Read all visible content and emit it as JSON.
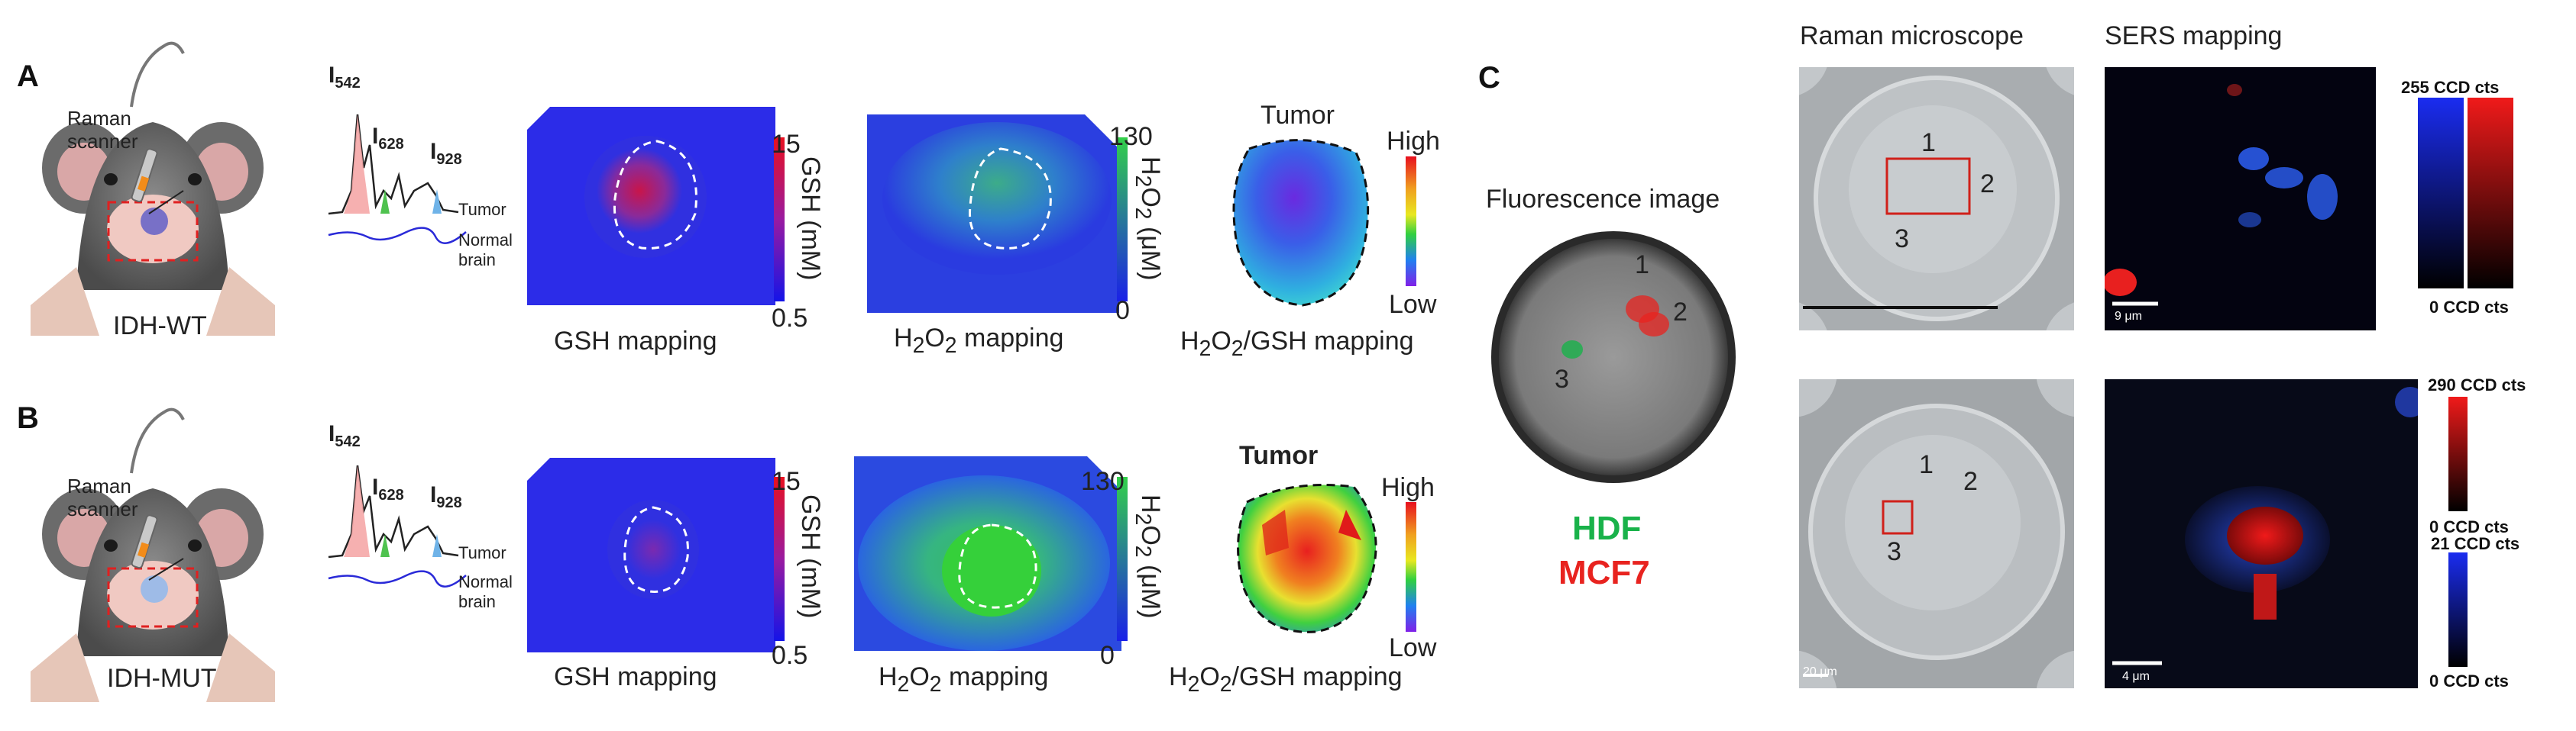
{
  "panels": {
    "a": {
      "letter": "A",
      "scanner_label": "Raman\nscanner",
      "mouse_label": "IDH-WT",
      "peaks": [
        "542",
        "628",
        "928"
      ],
      "spectrum_labels": {
        "tumor": "Tumor",
        "normal": "Normal\nbrain"
      },
      "maps": [
        {
          "caption": "GSH mapping",
          "cb_max": "15",
          "cb_min": "0.5",
          "cb_title": "GSH (mM)"
        },
        {
          "caption": "H2O2 mapping",
          "cb_max": "130",
          "cb_min": "0",
          "cb_title": "H2O2 (μM)"
        },
        {
          "caption": "H2O2/GSH mapping",
          "tumor_label": "Tumor",
          "high": "High",
          "low": "Low"
        }
      ]
    },
    "b": {
      "letter": "B",
      "scanner_label": "Raman\nscanner",
      "mouse_label": "IDH-MUT",
      "peaks": [
        "542",
        "628",
        "928"
      ],
      "spectrum_labels": {
        "tumor": "Tumor",
        "normal": "Normal\nbrain"
      },
      "maps": [
        {
          "caption": "GSH mapping",
          "cb_max": "15",
          "cb_min": "0.5",
          "cb_title": "GSH (mM)"
        },
        {
          "caption": "H2O2 mapping",
          "cb_max": "130",
          "cb_min": "0",
          "cb_title": "H2O2 (μM)"
        },
        {
          "caption": "H2O2/GSH mapping",
          "tumor_label": "Tumor",
          "high": "High",
          "low": "Low"
        }
      ]
    },
    "c": {
      "letter": "C",
      "fluorescence_title": "Fluorescence image",
      "cell_numbers": [
        "1",
        "2",
        "3"
      ],
      "legend": [
        {
          "label": "HDF",
          "color": "#19b24a"
        },
        {
          "label": "MCF7",
          "color": "#e8231f"
        }
      ],
      "raman_title": "Raman microscope",
      "sers_title": "SERS mapping",
      "top_scale": "9 μm",
      "top_colorbars": [
        {
          "max": "255 CCD cts",
          "min": "0 CCD cts"
        }
      ],
      "bottom_scale_raman": "20 μm",
      "bottom_scale_sers": "4 μm",
      "bottom_colorbars": [
        {
          "max": "290 CCD cts",
          "min": "0 CCD cts"
        },
        {
          "max": "21 CCD cts",
          "min": "0 CCD cts"
        }
      ]
    }
  },
  "colors": {
    "red_dash": "#e02020",
    "accent_blue": "#2a2ad8",
    "green": "#19b24a",
    "red": "#e8231f"
  }
}
